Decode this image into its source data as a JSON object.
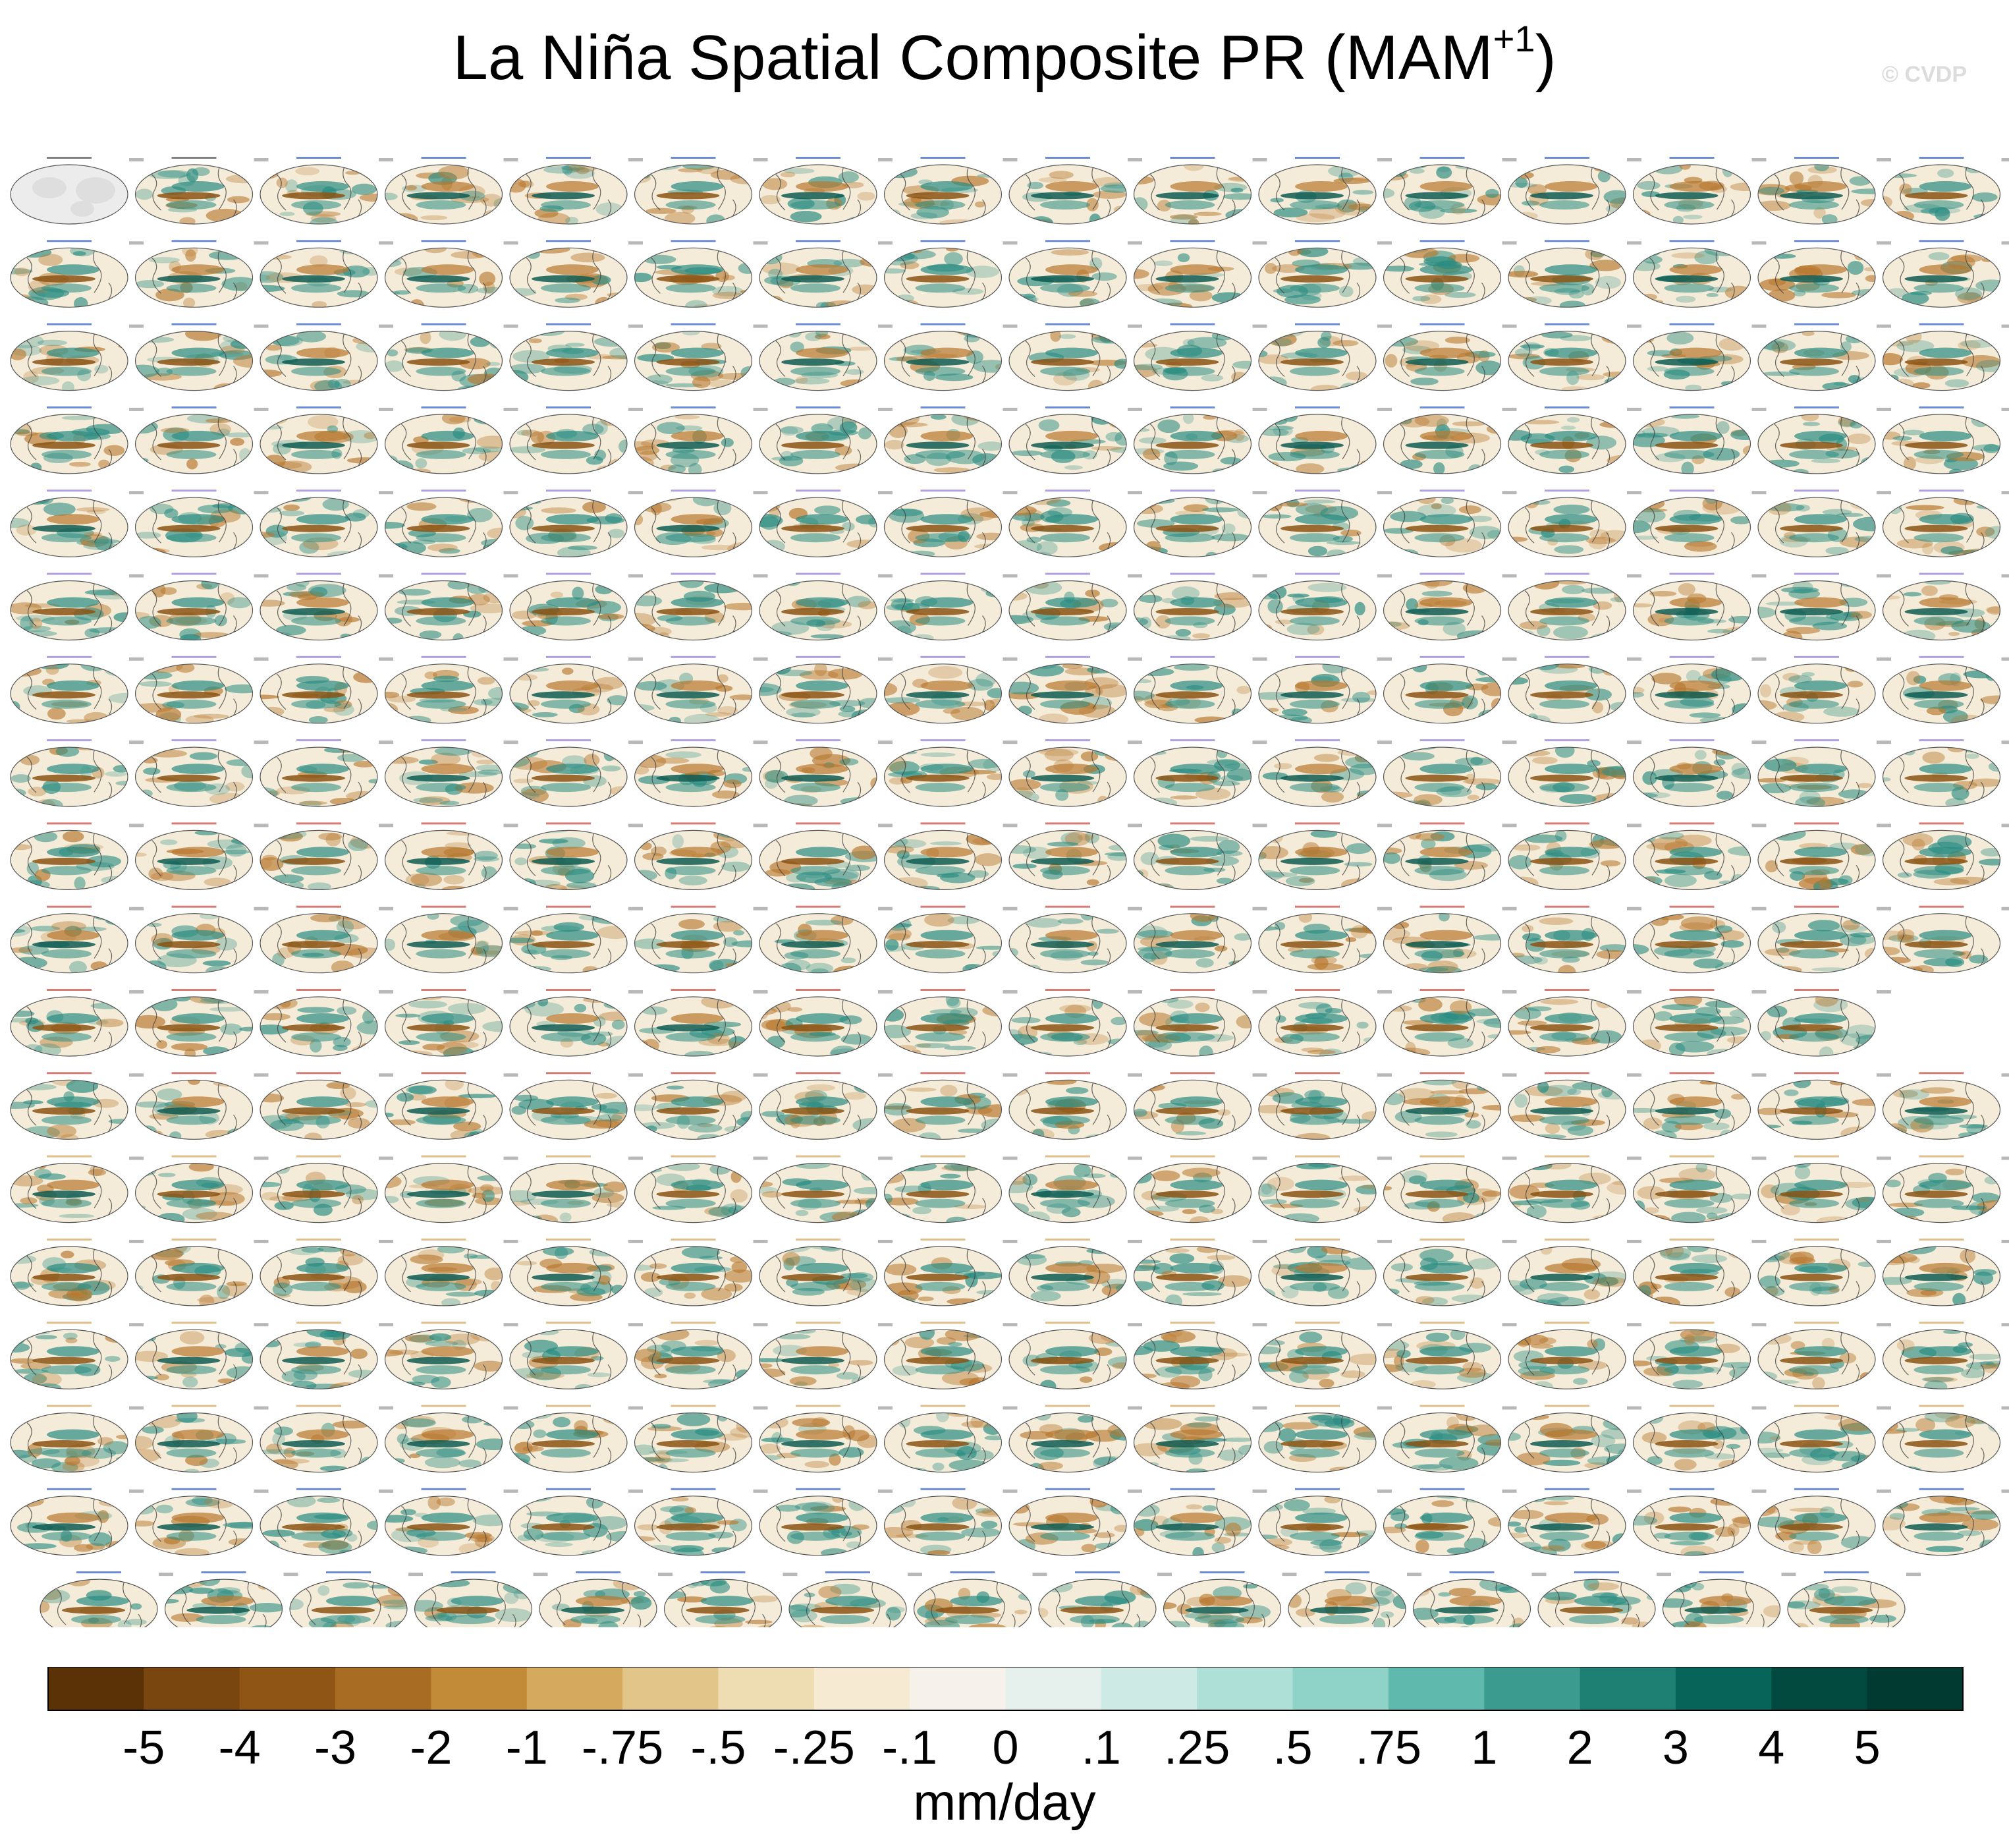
{
  "title": {
    "main": "La Niña Spatial Composite PR (MAM",
    "superscript": "+1",
    "close": ")"
  },
  "watermark": "© CVDP",
  "panels": {
    "rows_full": 17,
    "columns": 16,
    "row_11_count": 15,
    "last_row_count": 15,
    "first_panel_label": "GPCC",
    "second_panel_label": "GPCP",
    "palette": {
      "land": "#dedede",
      "ocean_light": "#f4ecd8",
      "wet": "#2a8c82",
      "wet_dark": "#0e5c52",
      "dry": "#b8782f",
      "dry_dark": "#8a5414",
      "coast": "#444444",
      "title_blue": "#3b64c8",
      "title_purple": "#9a7fd6",
      "title_red": "#c8504a",
      "title_tan": "#d4a860"
    }
  },
  "colorbar": {
    "units": "mm/day",
    "labels": [
      "-5",
      "-4",
      "-3",
      "-2",
      "-1",
      "-.75",
      "-.5",
      "-.25",
      "-.1",
      "0",
      ".1",
      ".25",
      ".5",
      ".75",
      "1",
      "2",
      "3",
      "4",
      "5"
    ],
    "colors": [
      "#5a3206",
      "#7a460f",
      "#8f5515",
      "#a86d22",
      "#c18b38",
      "#d6aa5e",
      "#e2c588",
      "#eedcb2",
      "#f6ebd2",
      "#f6f1ea",
      "#e6f1ee",
      "#cdeae4",
      "#afe0d8",
      "#8fd3c8",
      "#5fb9ac",
      "#3a9b8e",
      "#1e7f73",
      "#066558",
      "#024a3f",
      "#003a31"
    ]
  }
}
